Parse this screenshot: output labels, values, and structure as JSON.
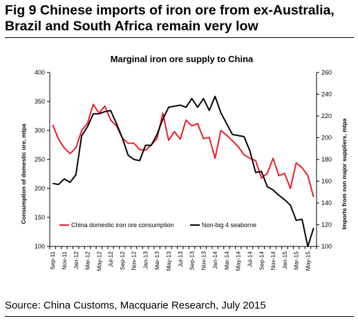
{
  "figure": {
    "title": "Fig 9    Chinese imports of iron ore from ex-Australia, Brazil and South Africa remain very low",
    "source": "Source: China Customs, Macquarie Research, July 2015"
  },
  "chart_data": {
    "type": "line",
    "title": "Marginal iron ore supply to China",
    "ylabel_left": "Consumption of domestic ore, mtpa",
    "ylabel_right": "Imports from non major suppliers, mtpa",
    "ylim_left": [
      100,
      400
    ],
    "ylim_right": [
      100,
      260
    ],
    "yticks_left": [
      "100",
      "150",
      "200",
      "250",
      "300",
      "350",
      "400"
    ],
    "yticks_right": [
      "100",
      "120",
      "140",
      "160",
      "180",
      "200",
      "220",
      "240",
      "260"
    ],
    "x": [
      "Sep-11",
      "Oct-11",
      "Nov-11",
      "Dec-11",
      "Jan-12",
      "Feb-12",
      "Mar-12",
      "Apr-12",
      "May-12",
      "Jun-12",
      "Jul-12",
      "Aug-12",
      "Sep-12",
      "Oct-12",
      "Nov-12",
      "Dec-12",
      "Jan-13",
      "Feb-13",
      "Mar-13",
      "Apr-13",
      "May-13",
      "Jun-13",
      "Jul-13",
      "Aug-13",
      "Sep-13",
      "Oct-13",
      "Nov-13",
      "Dec-13",
      "Jan-14",
      "Feb-14",
      "Mar-14",
      "Apr-14",
      "May-14",
      "Jun-14",
      "Jul-14",
      "Aug-14",
      "Sep-14",
      "Oct-14",
      "Nov-14",
      "Dec-14",
      "Jan-15",
      "Feb-15",
      "Mar-15",
      "Apr-15",
      "May-15",
      "Jun-15"
    ],
    "xtick_labels": [
      "Sep-11",
      "Nov-11",
      "Jan-12",
      "Mar-12",
      "May-12",
      "Jul-12",
      "Sep-12",
      "Nov-12",
      "Jan-13",
      "Mar-13",
      "May-13",
      "Jul-13",
      "Sep-13",
      "Nov-13",
      "Jan-14",
      "Mar-14",
      "May-14",
      "Jul-14",
      "Sep-14",
      "Nov-14",
      "Jan-15",
      "Mar-15",
      "May-15"
    ],
    "grid": false,
    "legend": "bottom-inside",
    "series": [
      {
        "name": "China domestic iron ore consumption",
        "axis": "left",
        "color": "#ee1c25",
        "values": [
          310,
          285,
          270,
          260,
          270,
          300,
          312,
          345,
          330,
          342,
          318,
          308,
          287,
          278,
          278,
          267,
          266,
          275,
          286,
          330,
          283,
          298,
          285,
          318,
          308,
          312,
          286,
          288,
          252,
          300,
          292,
          282,
          272,
          258,
          252,
          248,
          218,
          226,
          252,
          222,
          226,
          200,
          244,
          236,
          222,
          185
        ]
      },
      {
        "name": "Non-big 4 seaborne",
        "axis": "right",
        "color": "#000000",
        "values": [
          158,
          157,
          162,
          159,
          166,
          202,
          210,
          222,
          222,
          224,
          225,
          213,
          200,
          184,
          180,
          179,
          193,
          193,
          203,
          217,
          228,
          229,
          230,
          228,
          236,
          228,
          236,
          225,
          238,
          223,
          213,
          203,
          202,
          201,
          188,
          168,
          169,
          155,
          152,
          147,
          143,
          138,
          124,
          125,
          100,
          117
        ]
      }
    ]
  }
}
